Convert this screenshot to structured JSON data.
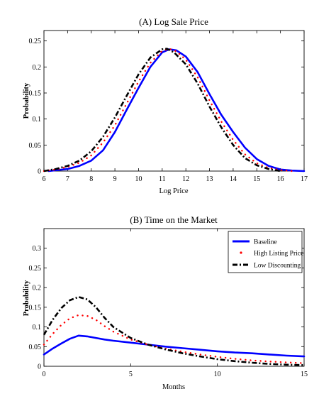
{
  "chart_data": [
    {
      "type": "line",
      "title": "(A) Log Sale Price",
      "xlabel": "Log Price",
      "ylabel": "Probability",
      "xlim": [
        6,
        17
      ],
      "ylim": [
        0,
        0.27
      ],
      "xticks": [
        6,
        7,
        8,
        9,
        10,
        11,
        12,
        13,
        14,
        15,
        16,
        17
      ],
      "yticks": [
        0,
        0.05,
        0.1,
        0.15,
        0.2,
        0.25
      ],
      "ytick_labels": [
        "0",
        "0.05",
        "0.1",
        "0.15",
        "0.2",
        "0.25"
      ],
      "grid": false,
      "series": [
        {
          "name": "Baseline",
          "color": "#0000ff",
          "style": "solid",
          "x": [
            6.2,
            7,
            7.5,
            8,
            8.5,
            9,
            9.5,
            10,
            10.5,
            11,
            11.3,
            11.6,
            12,
            12.5,
            13,
            13.5,
            14,
            14.5,
            15,
            15.5,
            16,
            16.5,
            17
          ],
          "y": [
            0.0,
            0.004,
            0.01,
            0.02,
            0.04,
            0.075,
            0.118,
            0.16,
            0.2,
            0.228,
            0.234,
            0.232,
            0.22,
            0.19,
            0.148,
            0.108,
            0.075,
            0.045,
            0.023,
            0.01,
            0.003,
            0.001,
            0.0
          ]
        },
        {
          "name": "High Listing Price",
          "color": "#ff0000",
          "style": "dotted",
          "x": [
            6,
            6.5,
            7,
            7.5,
            8,
            8.5,
            9,
            9.5,
            10,
            10.5,
            11,
            11.3,
            11.6,
            12,
            12.5,
            13,
            13.5,
            14,
            14.5,
            15,
            15.5,
            16,
            16.5
          ],
          "y": [
            0.0,
            0.003,
            0.008,
            0.016,
            0.03,
            0.055,
            0.088,
            0.13,
            0.172,
            0.208,
            0.231,
            0.235,
            0.23,
            0.214,
            0.18,
            0.136,
            0.095,
            0.06,
            0.032,
            0.015,
            0.006,
            0.002,
            0.0
          ]
        },
        {
          "name": "Low Discounting",
          "color": "#000000",
          "style": "dashdot",
          "x": [
            6,
            6.5,
            7,
            7.5,
            8,
            8.5,
            9,
            9.5,
            10,
            10.5,
            11,
            11.2,
            11.5,
            12,
            12.5,
            13,
            13.5,
            14,
            14.5,
            15,
            15.5,
            16
          ],
          "y": [
            0.0,
            0.004,
            0.01,
            0.02,
            0.038,
            0.066,
            0.103,
            0.145,
            0.186,
            0.218,
            0.234,
            0.235,
            0.228,
            0.205,
            0.168,
            0.124,
            0.084,
            0.05,
            0.025,
            0.011,
            0.004,
            0.0
          ]
        }
      ]
    },
    {
      "type": "line",
      "title": "(B) Time on the Market",
      "xlabel": "Months",
      "ylabel": "Probability",
      "xlim": [
        0,
        15
      ],
      "ylim": [
        0,
        0.35
      ],
      "xticks": [
        0,
        5,
        10,
        15
      ],
      "yticks": [
        0,
        0.05,
        0.1,
        0.15,
        0.2,
        0.25,
        0.3
      ],
      "ytick_labels": [
        "0",
        "0.05",
        "0.1",
        "0.15",
        "0.2",
        "0.25",
        "0.3"
      ],
      "grid": false,
      "legend": {
        "position": "top-right",
        "entries": [
          "Baseline",
          "High Listing Price",
          "Low Discounting"
        ]
      },
      "series": [
        {
          "name": "Baseline",
          "color": "#0000ff",
          "style": "solid",
          "x": [
            0,
            0.5,
            1,
            1.5,
            2,
            2.5,
            3,
            3.5,
            4,
            5,
            6,
            7,
            8,
            9,
            10,
            11,
            12,
            13,
            14,
            15
          ],
          "y": [
            0.03,
            0.045,
            0.058,
            0.07,
            0.078,
            0.076,
            0.072,
            0.068,
            0.065,
            0.06,
            0.055,
            0.05,
            0.046,
            0.042,
            0.038,
            0.035,
            0.033,
            0.03,
            0.027,
            0.025
          ]
        },
        {
          "name": "High Listing Price",
          "color": "#ff0000",
          "style": "dotted",
          "x": [
            0,
            0.5,
            1,
            1.5,
            2,
            2.5,
            3,
            3.5,
            4,
            5,
            6,
            7,
            8,
            9,
            10,
            11,
            12,
            13,
            14,
            15
          ],
          "y": [
            0.055,
            0.082,
            0.105,
            0.122,
            0.13,
            0.128,
            0.118,
            0.102,
            0.088,
            0.068,
            0.055,
            0.045,
            0.037,
            0.03,
            0.024,
            0.019,
            0.015,
            0.012,
            0.01,
            0.008
          ]
        },
        {
          "name": "Low Discounting",
          "color": "#000000",
          "style": "dashdot",
          "x": [
            0,
            0.5,
            1,
            1.5,
            2,
            2.5,
            3,
            3.5,
            4,
            5,
            6,
            7,
            8,
            9,
            10,
            11,
            12,
            13,
            14,
            15
          ],
          "y": [
            0.08,
            0.118,
            0.148,
            0.168,
            0.176,
            0.17,
            0.15,
            0.123,
            0.1,
            0.072,
            0.055,
            0.043,
            0.033,
            0.025,
            0.018,
            0.013,
            0.009,
            0.006,
            0.004,
            0.003
          ]
        }
      ]
    }
  ]
}
